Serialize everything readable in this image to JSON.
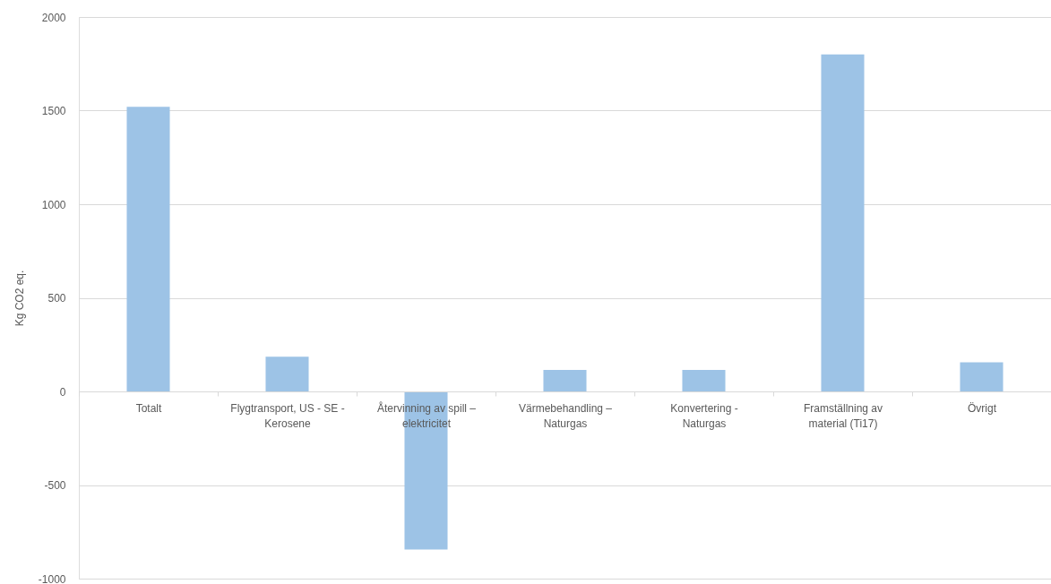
{
  "chart_data": {
    "type": "bar",
    "ylabel": "Kg CO2 eq.",
    "categories": [
      "Totalt",
      "Flygtransport, US - SE - Kerosene",
      "Återvinning av spill – elektricitet",
      "Värmebehandling – Naturgas",
      "Konvertering - Naturgas",
      "Framställning av material (Ti17)",
      "Övrigt"
    ],
    "values": [
      1520,
      185,
      -845,
      115,
      115,
      1800,
      155
    ],
    "color": "#9dc3e6",
    "ylim": [
      -1000,
      2000
    ],
    "yticks": [
      -1000,
      -500,
      0,
      500,
      1000,
      1500,
      2000
    ],
    "grid": "y"
  }
}
